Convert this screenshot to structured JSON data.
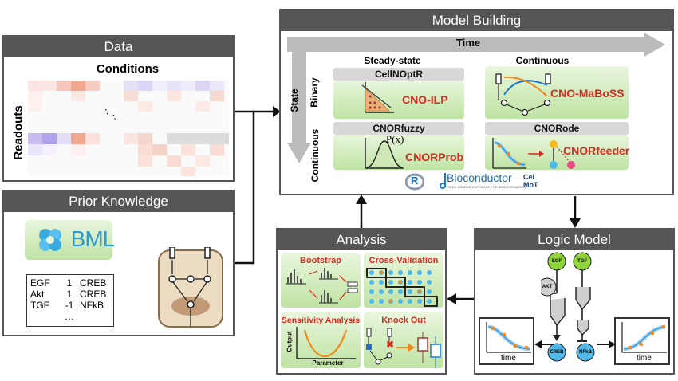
{
  "data_panel": {
    "title": "Data",
    "conditions_label": "Conditions",
    "readouts_label": "Readouts",
    "ellipsis": "·. ·."
  },
  "prior_panel": {
    "title": "Prior Knowledge",
    "sbml_logo": "SBML",
    "table": [
      {
        "a": "EGF",
        "v": "1",
        "b": "CREB"
      },
      {
        "a": "Akt",
        "v": "1",
        "b": "CREB"
      },
      {
        "a": "TGF",
        "v": "-1",
        "b": "NFkB"
      },
      {
        "a": "",
        "v": "…",
        "b": ""
      }
    ]
  },
  "model_panel": {
    "title": "Model Building",
    "time_label": "Time",
    "state_label": "State",
    "binary_label": "Binary",
    "continuous_row_label": "Continuous",
    "steady_state_label": "Steady-state",
    "continuous_col_label": "Continuous",
    "cellnoptr": "CellNOptR",
    "cno_ilp": "CNO-ILP",
    "cno_maboss": "CNO-MaBoSS",
    "cnorfuzzy": "CNORfuzzy",
    "px": "P(x)",
    "cnorprob": "CNORProb",
    "cnorode": "CNORode",
    "cnorfeeder": "CNORfeeder",
    "r_logo": "R",
    "bioconductor": "Bioconductor",
    "bioconductor_sub": "OPEN SOURCE SOFTWARE FOR BIOINFORMATICS",
    "cellnoptr_logo_1": "CeL",
    "cellnoptr_logo_2": "MoT"
  },
  "analysis_panel": {
    "title": "Analysis",
    "bootstrap": "Bootstrap",
    "cross_validation": "Cross-Validation",
    "sensitivity": "Sensitivity Analysis",
    "knock_out": "Knock Out",
    "output_label": "Output",
    "parameter_label": "Parameter"
  },
  "logic_panel": {
    "title": "Logic Model",
    "egf": "EGF",
    "tgf": "TGF",
    "akt": "AKT",
    "creb": "CREB",
    "nfkb": "NFkB",
    "time_left": "time",
    "time_right": "time"
  },
  "colors": {
    "panel_header": "#555555",
    "accent_red": "#d42a1f",
    "node_green": "#8fd63a",
    "node_blue": "#4fb8ea",
    "node_gray": "#cfcfcf"
  }
}
